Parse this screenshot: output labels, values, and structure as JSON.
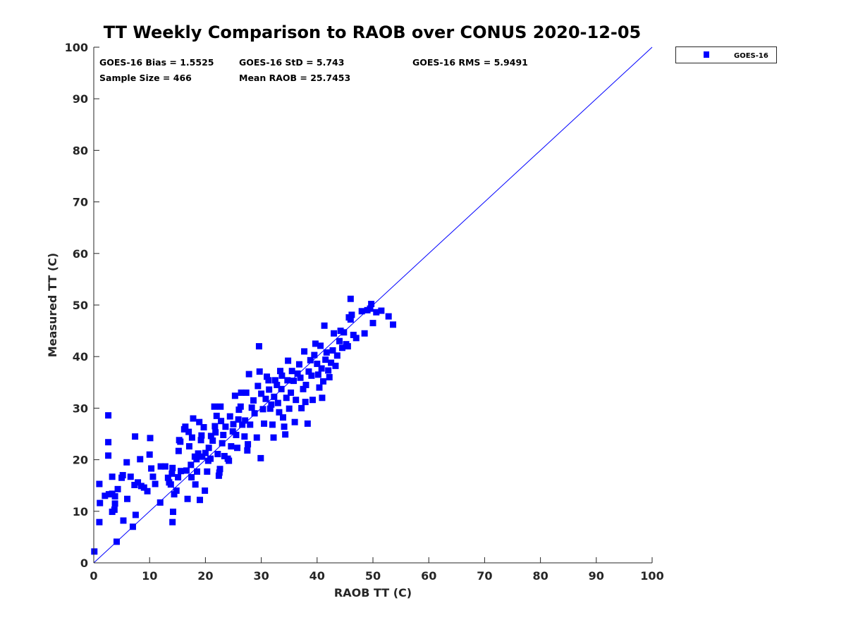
{
  "chart_data": {
    "type": "scatter",
    "title": "TT Weekly Comparison to RAOB over CONUS 2020-12-05",
    "xlabel": "RAOB TT (C)",
    "ylabel": "Measured TT (C)",
    "xlim": [
      0,
      100
    ],
    "ylim": [
      0,
      100
    ],
    "xticks": [
      "0",
      "10",
      "20",
      "30",
      "40",
      "50",
      "60",
      "70",
      "80",
      "90",
      "100"
    ],
    "yticks": [
      "0",
      "10",
      "20",
      "30",
      "40",
      "50",
      "60",
      "70",
      "80",
      "90",
      "100"
    ],
    "grid": false,
    "legend": {
      "position": "outside-top-right",
      "entries": [
        "GOES-16"
      ]
    },
    "reference_line": {
      "from": [
        0,
        0
      ],
      "to": [
        100,
        100
      ],
      "color": "#0000ff"
    },
    "annotations": {
      "bias": "GOES-16 Bias = 1.5525",
      "std": "GOES-16 StD = 5.743",
      "rms": "GOES-16 RMS = 5.9491",
      "sample": "Sample Size = 466",
      "mean": "Mean RAOB = 25.7453"
    },
    "series": [
      {
        "name": "GOES-16",
        "color": "#0000ff",
        "marker": "square",
        "points": [
          [
            0.1,
            2.2
          ],
          [
            1,
            15.3
          ],
          [
            1,
            7.9
          ],
          [
            1.1,
            11.6
          ],
          [
            2,
            13
          ],
          [
            2.6,
            28.6
          ],
          [
            2.6,
            23.4
          ],
          [
            2.6,
            20.8
          ],
          [
            2.7,
            13.3
          ],
          [
            3.3,
            16.7
          ],
          [
            3.3,
            13.4
          ],
          [
            3.3,
            9.9
          ],
          [
            3.8,
            12.9
          ],
          [
            3.8,
            11.5
          ],
          [
            3.7,
            10.3
          ],
          [
            4.1,
            4.1
          ],
          [
            4.3,
            14.3
          ],
          [
            5,
            16.5
          ],
          [
            5.2,
            17
          ],
          [
            5.3,
            8.2
          ],
          [
            5.9,
            19.5
          ],
          [
            6,
            12.4
          ],
          [
            6.6,
            16.7
          ],
          [
            7,
            7
          ],
          [
            7.3,
            15.1
          ],
          [
            7.4,
            24.5
          ],
          [
            7.5,
            9.3
          ],
          [
            7.9,
            15.6
          ],
          [
            8.3,
            20.1
          ],
          [
            8.5,
            14.9
          ],
          [
            9,
            14.6
          ],
          [
            9.6,
            13.9
          ],
          [
            10.1,
            24.2
          ],
          [
            10,
            21
          ],
          [
            10.3,
            18.3
          ],
          [
            10.6,
            16.7
          ],
          [
            11,
            15.3
          ],
          [
            11.9,
            11.7
          ],
          [
            12,
            18.7
          ],
          [
            12.8,
            18.7
          ],
          [
            13.3,
            16.5
          ],
          [
            13.5,
            15.6
          ],
          [
            13.8,
            15.2
          ],
          [
            14,
            17.3
          ],
          [
            14.1,
            18.4
          ],
          [
            14.2,
            9.9
          ],
          [
            14.1,
            7.9
          ],
          [
            14.4,
            13.3
          ],
          [
            14.8,
            14
          ],
          [
            15.1,
            16.6
          ],
          [
            15.2,
            21.7
          ],
          [
            15.3,
            23.8
          ],
          [
            15.5,
            23.5
          ],
          [
            15.6,
            17.8
          ],
          [
            16.2,
            25.9
          ],
          [
            16.4,
            26.4
          ],
          [
            16.6,
            17.9
          ],
          [
            16.8,
            12.4
          ],
          [
            17,
            25.4
          ],
          [
            17.1,
            22.6
          ],
          [
            17.4,
            19
          ],
          [
            17.5,
            16.6
          ],
          [
            17.6,
            24.3
          ],
          [
            17.8,
            28
          ],
          [
            18.1,
            20.6
          ],
          [
            18.2,
            15.2
          ],
          [
            18.4,
            20.1
          ],
          [
            18.5,
            17.7
          ],
          [
            18.7,
            21.2
          ],
          [
            18.9,
            27.3
          ],
          [
            19,
            12.2
          ],
          [
            19.2,
            23.8
          ],
          [
            19.3,
            24.7
          ],
          [
            19.4,
            20.6
          ],
          [
            19.7,
            26.3
          ],
          [
            19.9,
            14
          ],
          [
            20,
            21.3
          ],
          [
            20.3,
            17.7
          ],
          [
            20.5,
            19.8
          ],
          [
            20.6,
            22.3
          ],
          [
            20.9,
            20.2
          ],
          [
            21,
            24.6
          ],
          [
            21.3,
            23.7
          ],
          [
            21.6,
            30.3
          ],
          [
            21.7,
            26.5
          ],
          [
            21.8,
            25.3
          ],
          [
            22,
            28.5
          ],
          [
            22.2,
            21.1
          ],
          [
            22.5,
            17.5
          ],
          [
            22.4,
            16.9
          ],
          [
            22.6,
            18.2
          ],
          [
            22.7,
            30.3
          ],
          [
            22.8,
            27.5
          ],
          [
            23,
            23.2
          ],
          [
            23.2,
            24.8
          ],
          [
            23.4,
            20.7
          ],
          [
            23.6,
            26.4
          ],
          [
            24,
            20.2
          ],
          [
            24.2,
            19.8
          ],
          [
            24.4,
            28.4
          ],
          [
            24.6,
            22.6
          ],
          [
            24.9,
            25.5
          ],
          [
            25,
            26.9
          ],
          [
            25.3,
            32.4
          ],
          [
            25.5,
            24.8
          ],
          [
            25.7,
            22.3
          ],
          [
            25.9,
            27.8
          ],
          [
            26,
            29.7
          ],
          [
            26.3,
            30.3
          ],
          [
            26.4,
            33
          ],
          [
            26.6,
            26.8
          ],
          [
            27,
            24.5
          ],
          [
            27.1,
            27.6
          ],
          [
            27.3,
            33
          ],
          [
            27.5,
            21.8
          ],
          [
            27.6,
            23
          ],
          [
            27.8,
            36.6
          ],
          [
            28,
            26.8
          ],
          [
            28.3,
            30.1
          ],
          [
            28.6,
            31.5
          ],
          [
            28.8,
            29
          ],
          [
            29.2,
            24.3
          ],
          [
            29.4,
            34.3
          ],
          [
            29.6,
            42
          ],
          [
            29.7,
            37.1
          ],
          [
            29.9,
            20.3
          ],
          [
            30,
            32.8
          ],
          [
            30.3,
            29.8
          ],
          [
            30.5,
            27
          ],
          [
            30.8,
            31.8
          ],
          [
            31,
            36.1
          ],
          [
            31.3,
            35.4
          ],
          [
            31.4,
            33.6
          ],
          [
            31.6,
            29.9
          ],
          [
            31.8,
            30.7
          ],
          [
            32,
            26.8
          ],
          [
            32.2,
            24.3
          ],
          [
            32.3,
            32.2
          ],
          [
            32.5,
            35.4
          ],
          [
            32.8,
            34.5
          ],
          [
            33,
            31
          ],
          [
            33.2,
            29.2
          ],
          [
            33.4,
            37.2
          ],
          [
            33.6,
            33.7
          ],
          [
            33.7,
            36.3
          ],
          [
            33.9,
            28.2
          ],
          [
            34.1,
            26.4
          ],
          [
            34.3,
            24.9
          ],
          [
            34.5,
            32
          ],
          [
            34.7,
            35.4
          ],
          [
            34.8,
            39.2
          ],
          [
            35,
            29.9
          ],
          [
            35.3,
            33
          ],
          [
            35.5,
            37.2
          ],
          [
            35.8,
            35.3
          ],
          [
            36,
            27.3
          ],
          [
            36.2,
            31.6
          ],
          [
            36.5,
            36.7
          ],
          [
            36.8,
            38.5
          ],
          [
            37,
            35.9
          ],
          [
            37.2,
            30
          ],
          [
            37.5,
            33.7
          ],
          [
            37.7,
            41
          ],
          [
            37.9,
            31.2
          ],
          [
            38,
            34.5
          ],
          [
            38.3,
            27
          ],
          [
            38.5,
            37.1
          ],
          [
            38.8,
            39.3
          ],
          [
            39,
            36.3
          ],
          [
            39.2,
            31.6
          ],
          [
            39.5,
            40.3
          ],
          [
            39.7,
            42.5
          ],
          [
            40,
            38.6
          ],
          [
            40.2,
            36.5
          ],
          [
            40.4,
            34
          ],
          [
            40.6,
            42.1
          ],
          [
            40.8,
            37.7
          ],
          [
            40.9,
            32
          ],
          [
            41.1,
            35.2
          ],
          [
            41.3,
            46
          ],
          [
            41.5,
            39.4
          ],
          [
            41.7,
            40.8
          ],
          [
            42,
            37.3
          ],
          [
            42.2,
            36
          ],
          [
            42.5,
            38.8
          ],
          [
            42.8,
            41.2
          ],
          [
            43,
            44.5
          ],
          [
            43.3,
            38.2
          ],
          [
            43.6,
            40.2
          ],
          [
            44,
            43
          ],
          [
            44.2,
            45
          ],
          [
            44.5,
            41.7
          ],
          [
            44.8,
            44.7
          ],
          [
            45.2,
            42.4
          ],
          [
            45.5,
            42
          ],
          [
            45.7,
            47.6
          ],
          [
            46,
            47.2
          ],
          [
            46,
            51.2
          ],
          [
            46.2,
            48.1
          ],
          [
            46.5,
            44.2
          ],
          [
            47,
            43.6
          ],
          [
            48,
            48.8
          ],
          [
            48.5,
            44.5
          ],
          [
            49,
            49
          ],
          [
            49.5,
            49.3
          ],
          [
            49.7,
            50.2
          ],
          [
            50,
            46.5
          ],
          [
            50.6,
            48.6
          ],
          [
            51.5,
            48.9
          ],
          [
            52.8,
            47.8
          ],
          [
            53.6,
            46.2
          ]
        ]
      }
    ]
  }
}
